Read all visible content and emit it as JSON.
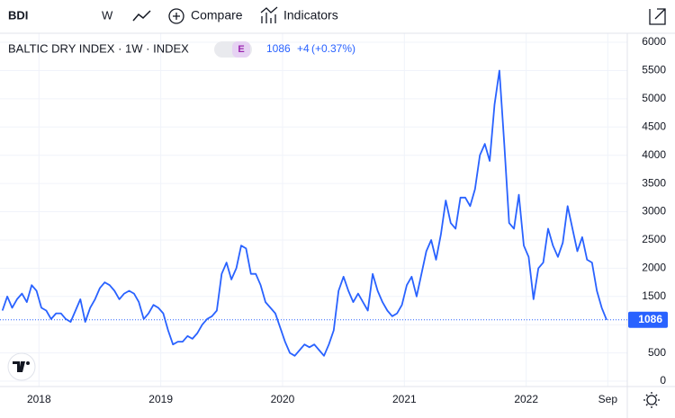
{
  "toolbar": {
    "symbol": "BDI",
    "interval": "W",
    "compare": "Compare",
    "indicators": "Indicators"
  },
  "legend": {
    "title": "BALTIC DRY INDEX · 1W · INDEX",
    "badge": "E",
    "change": "+4",
    "change_pct": "(+0.37%)"
  },
  "chart_data": {
    "type": "line",
    "x": [
      2017.7,
      2017.74,
      2017.78,
      2017.82,
      2017.86,
      2017.9,
      2017.94,
      2017.98,
      2018.02,
      2018.06,
      2018.1,
      2018.14,
      2018.18,
      2018.22,
      2018.26,
      2018.3,
      2018.34,
      2018.38,
      2018.42,
      2018.46,
      2018.5,
      2018.54,
      2018.58,
      2018.62,
      2018.66,
      2018.7,
      2018.74,
      2018.78,
      2018.82,
      2018.86,
      2018.9,
      2018.94,
      2018.98,
      2019.02,
      2019.06,
      2019.1,
      2019.14,
      2019.18,
      2019.22,
      2019.26,
      2019.3,
      2019.34,
      2019.38,
      2019.42,
      2019.46,
      2019.5,
      2019.54,
      2019.58,
      2019.62,
      2019.66,
      2019.7,
      2019.74,
      2019.78,
      2019.82,
      2019.86,
      2019.9,
      2019.94,
      2019.98,
      2020.02,
      2020.06,
      2020.1,
      2020.14,
      2020.18,
      2020.22,
      2020.26,
      2020.3,
      2020.34,
      2020.38,
      2020.42,
      2020.46,
      2020.5,
      2020.54,
      2020.58,
      2020.62,
      2020.66,
      2020.7,
      2020.74,
      2020.78,
      2020.82,
      2020.86,
      2020.9,
      2020.94,
      2020.98,
      2021.02,
      2021.06,
      2021.1,
      2021.14,
      2021.18,
      2021.22,
      2021.26,
      2021.3,
      2021.34,
      2021.38,
      2021.42,
      2021.46,
      2021.5,
      2021.54,
      2021.58,
      2021.62,
      2021.66,
      2021.7,
      2021.74,
      2021.78,
      2021.82,
      2021.86,
      2021.9,
      2021.94,
      2021.98,
      2022.02,
      2022.06,
      2022.1,
      2022.14,
      2022.18,
      2022.22,
      2022.26,
      2022.3,
      2022.34,
      2022.38,
      2022.42,
      2022.46,
      2022.5,
      2022.54,
      2022.58,
      2022.62,
      2022.66
    ],
    "series": [
      {
        "name": "BDI",
        "color": "#2962ff",
        "values": [
          1250,
          1500,
          1300,
          1450,
          1550,
          1400,
          1700,
          1600,
          1300,
          1250,
          1100,
          1200,
          1200,
          1100,
          1050,
          1250,
          1450,
          1050,
          1300,
          1450,
          1650,
          1750,
          1700,
          1600,
          1450,
          1550,
          1600,
          1550,
          1400,
          1100,
          1200,
          1350,
          1300,
          1200,
          900,
          650,
          700,
          700,
          800,
          750,
          850,
          1000,
          1100,
          1150,
          1250,
          1900,
          2100,
          1800,
          2000,
          2400,
          2350,
          1900,
          1900,
          1700,
          1400,
          1300,
          1200,
          950,
          700,
          500,
          450,
          550,
          650,
          600,
          650,
          550,
          450,
          650,
          900,
          1600,
          1850,
          1600,
          1400,
          1550,
          1400,
          1250,
          1900,
          1600,
          1400,
          1250,
          1150,
          1200,
          1350,
          1700,
          1850,
          1500,
          1900,
          2300,
          2500,
          2150,
          2600,
          3200,
          2800,
          2700,
          3250,
          3250,
          3100,
          3400,
          4000,
          4200,
          3900,
          4900,
          5500,
          4200,
          2800,
          2700,
          3300,
          2400,
          2200,
          1450,
          2000,
          2100,
          2700,
          2400,
          2200,
          2450,
          3100,
          2700,
          2300,
          2550,
          2150,
          2100,
          1600,
          1300,
          1086
        ]
      }
    ],
    "xlim": [
      2017.68,
      2022.83
    ],
    "ylim": [
      -95,
      6160
    ],
    "xticks": [
      2018,
      2019,
      2020,
      2021,
      2022,
      {
        "value": 2022.67,
        "label": "Sep"
      }
    ],
    "yticks": [
      0,
      500,
      1000,
      1500,
      2000,
      2500,
      3000,
      3500,
      4000,
      4500,
      5000,
      5500,
      6000
    ],
    "grid": true
  }
}
